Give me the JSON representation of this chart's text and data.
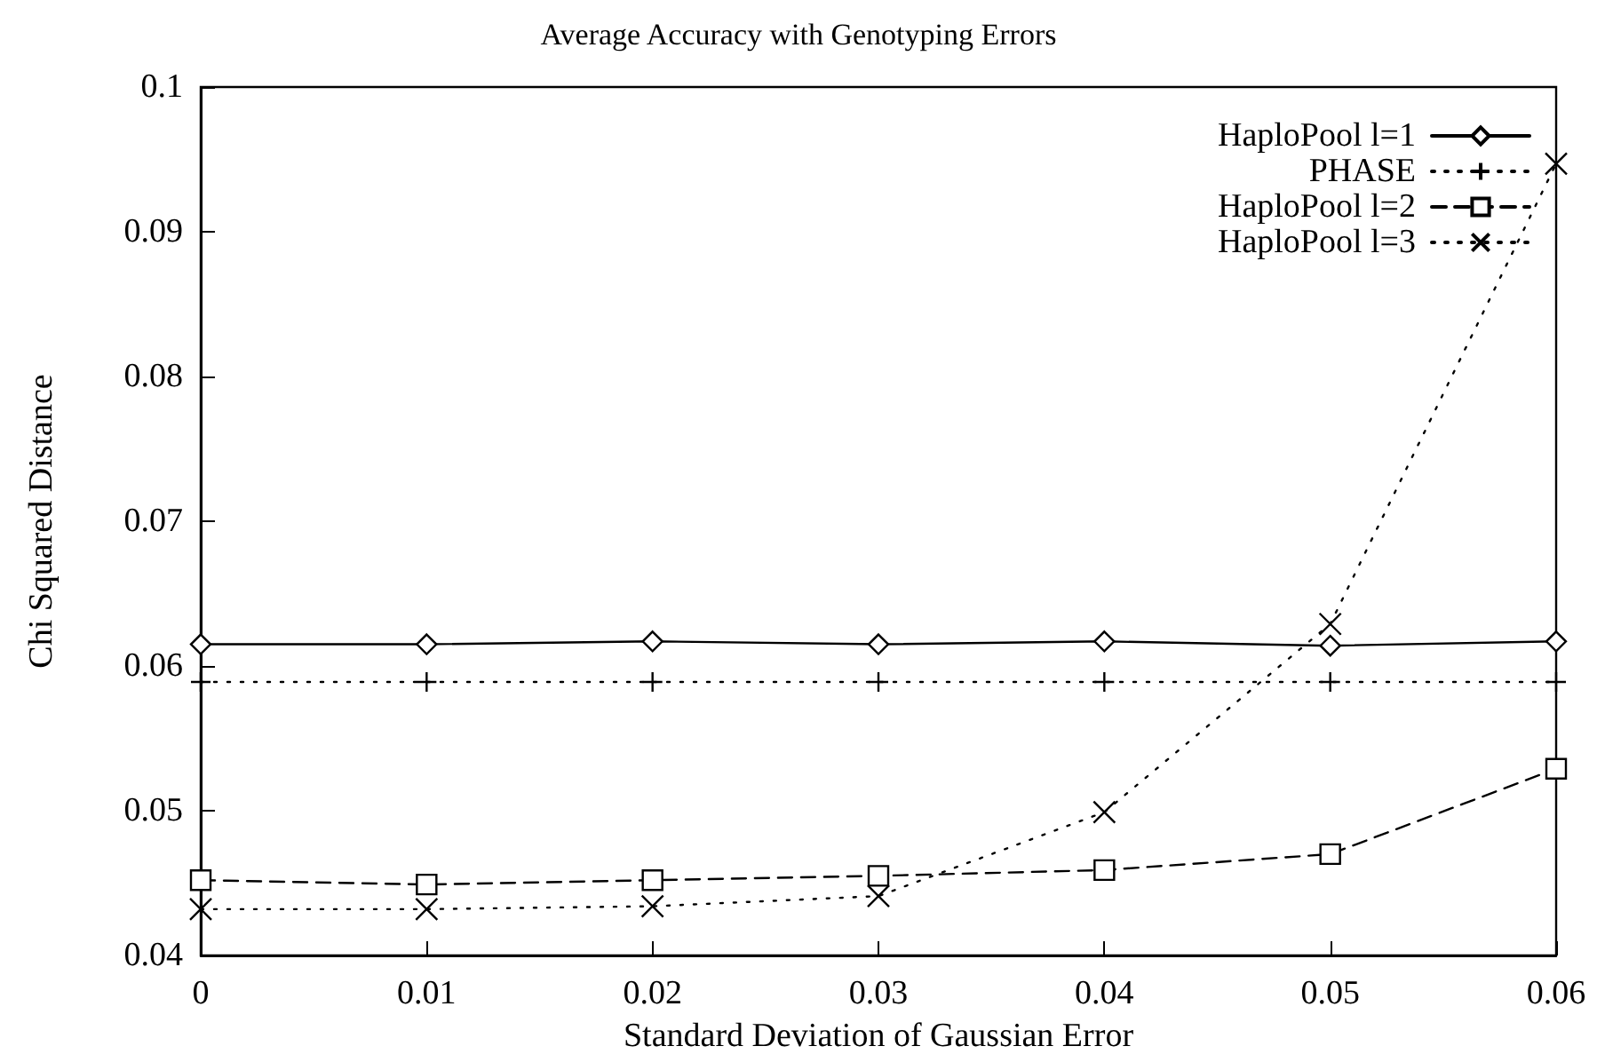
{
  "chart_data": {
    "type": "line",
    "title": "Average Accuracy with Genotyping Errors",
    "xlabel": "Standard Deviation of Gaussian Error",
    "ylabel": "Chi Squared Distance",
    "x": [
      0,
      0.01,
      0.02,
      0.03,
      0.04,
      0.05,
      0.06
    ],
    "series": [
      {
        "name": "HaploPool l=1",
        "color": "#000000",
        "line_style": "solid",
        "marker": "diamond",
        "values": [
          0.0615,
          0.0615,
          0.0617,
          0.0615,
          0.0617,
          0.0614,
          0.0617
        ]
      },
      {
        "name": "PHASE",
        "color": "#000000",
        "line_style": "dotted",
        "marker": "cross",
        "values": [
          0.0589,
          0.0589,
          0.0589,
          0.0589,
          0.0589,
          0.0589,
          0.0589
        ]
      },
      {
        "name": "HaploPool l=2",
        "color": "#000000",
        "line_style": "dashed",
        "marker": "square",
        "values": [
          0.0452,
          0.0449,
          0.0452,
          0.0455,
          0.0459,
          0.047,
          0.0529
        ]
      },
      {
        "name": "HaploPool l=3",
        "color": "#000000",
        "line_style": "dotted",
        "marker": "x",
        "values": [
          0.0432,
          0.0432,
          0.0434,
          0.0441,
          0.0499,
          0.0629,
          0.0947
        ]
      }
    ],
    "xlim": [
      0,
      0.06
    ],
    "xticks": [
      0,
      0.01,
      0.02,
      0.03,
      0.04,
      0.05,
      0.06
    ],
    "ylim": [
      0.04,
      0.1
    ],
    "yticks": [
      0.04,
      0.05,
      0.06,
      0.07,
      0.08,
      0.09,
      0.1
    ],
    "grid": false,
    "legend": "top right"
  }
}
